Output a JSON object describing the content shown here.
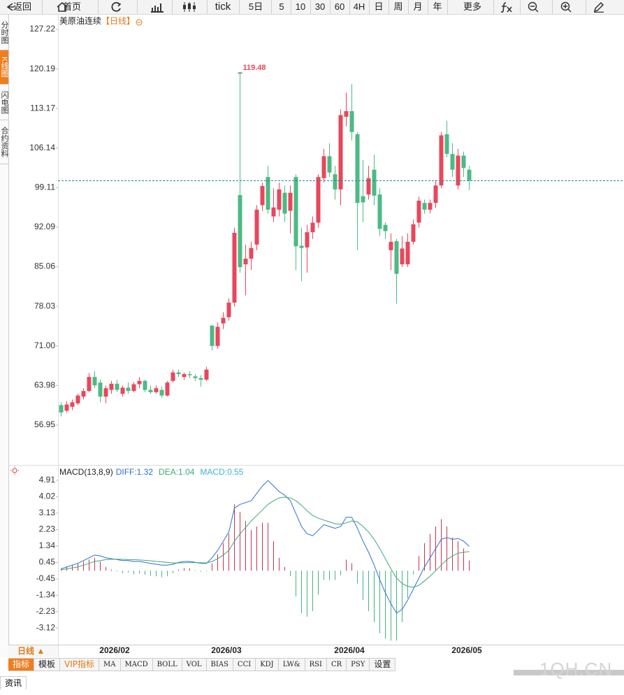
{
  "toolbar": [
    "返回",
    "首页",
    "tick",
    "5日",
    "5",
    "10",
    "30",
    "60",
    "4H",
    "日",
    "周",
    "月",
    "年",
    "更多"
  ],
  "side_tabs": [
    "分时图",
    "K线图",
    "闪电图",
    "合约资料"
  ],
  "period_selector": "日线 ▲",
  "indicator_tabs": [
    "指标",
    "模板",
    "VIP指标",
    "MA",
    "MACD",
    "BOLL",
    "VOL",
    "BIAS",
    "CCI",
    "KDJ",
    "LW&",
    "RSI",
    "CR",
    "PSY",
    "设置"
  ],
  "news_tab": "资讯",
  "watermark": "1QH.CN",
  "chart_data": [
    {
      "type": "candlestick",
      "title": "美原油连续",
      "period": "【日线】",
      "annotations": [
        "119.48"
      ],
      "up_color": "#e8475b",
      "down_color": "#4cba84",
      "categories": [
        null,
        null,
        null,
        null,
        null,
        null,
        null,
        null,
        null,
        null,
        "2026/02",
        null,
        null,
        null,
        null,
        null,
        null,
        null,
        null,
        null,
        null,
        null,
        null,
        null,
        null,
        null,
        null,
        null,
        null,
        null,
        "2026/03",
        null,
        null,
        null,
        null,
        null,
        null,
        null,
        null,
        null,
        null,
        null,
        null,
        null,
        null,
        null,
        null,
        null,
        null,
        null,
        null,
        null,
        "2026/04",
        null,
        null,
        null,
        null,
        null,
        null,
        null,
        null,
        null,
        null,
        null,
        null,
        null,
        null,
        null,
        null,
        null,
        null,
        null,
        null,
        "2026/05"
      ],
      "open": [
        60.5,
        59.5,
        60.2,
        60.8,
        62,
        63,
        65.5,
        64.5,
        62,
        63.2,
        64.3,
        62.5,
        63.6,
        63,
        64.2,
        64.8,
        63.2,
        62.8,
        63.2,
        62.2,
        64.8,
        66.3,
        65.5,
        66,
        65.6,
        65.3,
        65,
        74.6,
        71,
        75,
        76.1,
        78.7,
        97.8,
        85.5,
        86.5,
        89,
        96,
        101,
        94,
        95.2,
        98.2,
        95,
        101,
        88.8,
        88.5,
        91.2,
        92.9,
        100.8,
        104.7,
        101.5,
        98.8,
        111.7,
        112.7,
        108.6,
        97.6,
        97.9,
        102.3,
        97.9,
        92.5,
        88,
        89.6,
        85.5,
        85.5,
        89.5,
        92.9,
        96.4,
        95.2,
        96.4,
        99.5,
        108.6,
        105.1,
        99.5,
        104.8,
        102.3
      ],
      "high": [
        61,
        61.2,
        61.5,
        62.5,
        63.5,
        66.2,
        66.5,
        65,
        64,
        64.8,
        65,
        64,
        64.5,
        64.6,
        65.5,
        65,
        64,
        64,
        63.8,
        64.8,
        66.8,
        66.8,
        66.3,
        66.5,
        66,
        65.8,
        67.3,
        74.8,
        75.2,
        77,
        79.5,
        92,
        119.48,
        89,
        89.5,
        96,
        100,
        103,
        99,
        100,
        99.5,
        99.5,
        101.5,
        92,
        92.5,
        94,
        101.5,
        106,
        107,
        103,
        113,
        116,
        117.5,
        109,
        104,
        103,
        105,
        99,
        93,
        91,
        90,
        90.5,
        91,
        93.5,
        97.5,
        97,
        97,
        100.5,
        109,
        111,
        107,
        106,
        105.5,
        103
      ],
      "low": [
        58.5,
        59.2,
        59.6,
        60.5,
        61.5,
        62.8,
        63.5,
        61,
        60.8,
        62.5,
        62.8,
        62,
        62.5,
        62.8,
        63.5,
        62.8,
        62.5,
        62.5,
        61.8,
        62,
        64.5,
        65.5,
        65,
        65.3,
        64.8,
        63.8,
        64.8,
        70.2,
        70.5,
        74,
        75.5,
        78,
        84,
        80,
        84.5,
        88,
        95,
        94.5,
        93,
        94,
        93,
        91,
        84.5,
        82.5,
        84,
        90,
        92,
        100,
        101,
        97,
        96,
        110,
        107.5,
        88,
        93,
        97,
        96,
        90.5,
        90,
        84.5,
        78.5,
        85,
        85,
        89,
        92,
        94.5,
        94.5,
        95.5,
        99,
        104.5,
        101,
        98.8,
        101,
        98.7
      ],
      "close": [
        59.2,
        60.6,
        61,
        62.2,
        63,
        65.5,
        64,
        62,
        63.5,
        64.3,
        63.2,
        63.6,
        63,
        64.2,
        64.8,
        63.2,
        62.8,
        63.5,
        62.2,
        64.5,
        66.3,
        66,
        66,
        65.8,
        65.3,
        65,
        66.8,
        71,
        74.4,
        76,
        78.7,
        91.1,
        85,
        86.5,
        88.4,
        95.2,
        99.4,
        95.2,
        95.6,
        98.8,
        94.5,
        98.2,
        88.7,
        88.4,
        91.2,
        92.9,
        101,
        104.7,
        101.8,
        98.8,
        112,
        112.7,
        109,
        96.4,
        96.5,
        100.8,
        97.7,
        91.8,
        91.4,
        89.5,
        83.8,
        88.3,
        89.5,
        92.6,
        96.8,
        95.2,
        96.4,
        99.5,
        108.4,
        105.1,
        102.3,
        104.8,
        102.6,
        100.4
      ],
      "ylim": [
        49.87,
        129.95
      ],
      "yticks": [
        127.22,
        120.19,
        113.17,
        106.14,
        99.11,
        92.09,
        85.06,
        78.03,
        {
          "value": 71,
          "label": "71.00"
        },
        63.98,
        56.95
      ]
    },
    {
      "type": "macd",
      "legend": "MACD(13,8,9)",
      "series": [
        {
          "name": "DIFF:1.32",
          "color": "#2f6fd3",
          "style": "line",
          "values": [
            0.1,
            0.2,
            0.3,
            0.4,
            0.55,
            0.7,
            0.85,
            0.8,
            0.7,
            0.65,
            0.6,
            0.55,
            0.55,
            0.5,
            0.5,
            0.45,
            0.4,
            0.35,
            0.3,
            0.3,
            0.35,
            0.45,
            0.5,
            0.5,
            0.45,
            0.4,
            0.4,
            0.7,
            1.1,
            1.6,
            2.1,
            3.4,
            3.6,
            3.7,
            3.8,
            4.2,
            4.6,
            4.9,
            4.6,
            4.3,
            4.1,
            3.8,
            3.1,
            2.4,
            2.0,
            1.9,
            2.2,
            2.5,
            2.4,
            2.3,
            2.4,
            2.9,
            2.9,
            2.3,
            1.6,
            1.0,
            0.3,
            -0.5,
            -1.2,
            -1.8,
            -2.3,
            -2.1,
            -1.6,
            -1.0,
            -0.4,
            0.2,
            0.7,
            1.2,
            1.7,
            1.8,
            1.7,
            1.75,
            1.6,
            1.32
          ]
        },
        {
          "name": "DEA:1.04",
          "color": "#3ca87a",
          "style": "line",
          "values": [
            0.05,
            0.1,
            0.15,
            0.2,
            0.3,
            0.4,
            0.5,
            0.55,
            0.6,
            0.62,
            0.62,
            0.62,
            0.6,
            0.6,
            0.58,
            0.56,
            0.54,
            0.5,
            0.48,
            0.45,
            0.42,
            0.42,
            0.43,
            0.44,
            0.44,
            0.43,
            0.42,
            0.5,
            0.65,
            0.85,
            1.1,
            1.6,
            2.0,
            2.35,
            2.7,
            3.0,
            3.3,
            3.6,
            3.8,
            3.95,
            4.0,
            3.95,
            3.8,
            3.55,
            3.25,
            3.0,
            2.85,
            2.75,
            2.65,
            2.55,
            2.52,
            2.6,
            2.7,
            2.65,
            2.4,
            2.1,
            1.7,
            1.2,
            0.65,
            0.1,
            -0.4,
            -0.7,
            -0.85,
            -0.9,
            -0.8,
            -0.55,
            -0.3,
            0.0,
            0.3,
            0.6,
            0.8,
            0.95,
            1.0,
            1.04
          ]
        },
        {
          "name": "MACD:0.55",
          "color": "#3fb3d6",
          "style": "bar",
          "up_color": "#c8334d",
          "down_color": "#45b383",
          "values": [
            0.1,
            0.2,
            0.3,
            0.4,
            0.5,
            0.6,
            0.7,
            0.5,
            0.2,
            0.06,
            -0.04,
            -0.14,
            -0.1,
            -0.2,
            -0.16,
            -0.22,
            -0.28,
            -0.3,
            -0.36,
            -0.3,
            -0.14,
            0.06,
            0.14,
            0.12,
            0.02,
            -0.06,
            -0.04,
            0.4,
            0.9,
            1.5,
            2.0,
            3.6,
            3.2,
            2.7,
            2.2,
            2.4,
            2.6,
            2.6,
            1.6,
            0.7,
            0.2,
            -0.3,
            -1.4,
            -2.3,
            -2.5,
            -2.2,
            -1.3,
            -0.5,
            -0.5,
            -0.5,
            -0.24,
            0.6,
            0.4,
            -0.7,
            -1.6,
            -2.2,
            -2.8,
            -3.4,
            -3.7,
            -3.8,
            -3.8,
            -2.8,
            -1.5,
            -0.2,
            0.8,
            1.5,
            2.0,
            2.4,
            2.8,
            2.4,
            1.8,
            1.6,
            1.2,
            0.55
          ]
        }
      ],
      "ylim": [
        -4.02,
        5.63
      ],
      "yticks": [
        4.91,
        4.02,
        3.13,
        2.23,
        1.34,
        0.45,
        -0.45,
        -1.34,
        -2.23,
        -3.12
      ]
    }
  ]
}
